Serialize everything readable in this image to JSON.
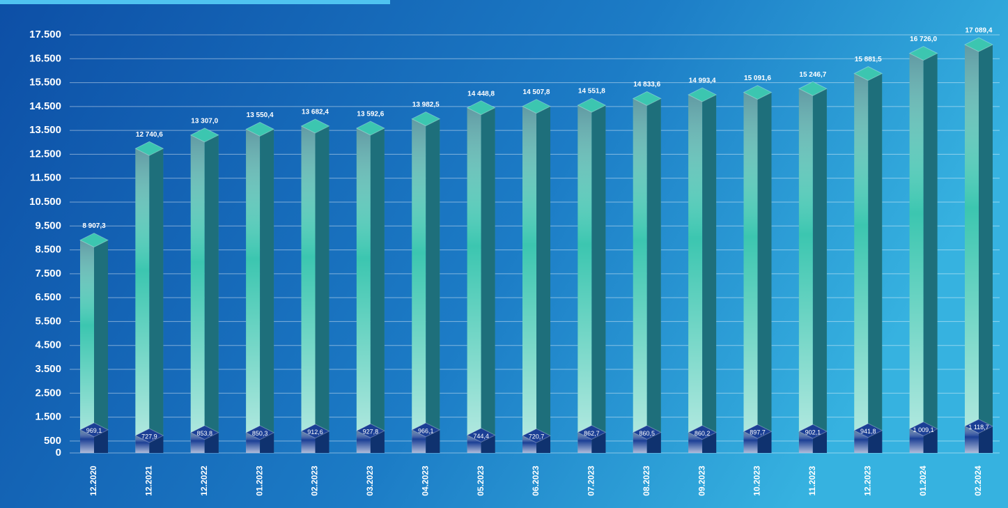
{
  "chart_data": {
    "type": "bar",
    "categories": [
      "12.2020",
      "12.2021",
      "12.2022",
      "01.2023",
      "02.2023",
      "03.2023",
      "04.2023",
      "05.2023",
      "06.2023",
      "07.2023",
      "08.2023",
      "09.2023",
      "10.2023",
      "11.2023",
      "12.2023",
      "01.2024",
      "02.2024"
    ],
    "series": [
      {
        "color": "#3cc6b0",
        "values": [
          8907.3,
          12740.6,
          13307.0,
          13550.4,
          13682.4,
          13592.6,
          13982.5,
          14448.8,
          14507.8,
          14551.8,
          14833.6,
          14993.4,
          15091.6,
          15246.7,
          15881.5,
          16726.0,
          17089.4
        ],
        "value_labels": [
          "8 907,3",
          "12 740,6",
          "13 307,0",
          "13 550,4",
          "13 682,4",
          "13 592,6",
          "13 982,5",
          "14 448,8",
          "14 507,8",
          "14 551,8",
          "14 833,6",
          "14 993,4",
          "15 091,6",
          "15 246,7",
          "15 881,5",
          "16 726,0",
          "17 089,4"
        ]
      },
      {
        "color": "#1b3f95",
        "values": [
          969.1,
          727.9,
          853.8,
          850.3,
          912.6,
          927.8,
          966.1,
          744.4,
          720.7,
          862.7,
          860.5,
          860.2,
          897.7,
          902.1,
          941.8,
          1009.1,
          1118.7
        ],
        "value_labels": [
          "969,1",
          "727,9",
          "853,8",
          "850,3",
          "912,6",
          "927,8",
          "966,1",
          "744,4",
          "720,7",
          "862,7",
          "860,5",
          "860,2",
          "897,7",
          "902,1",
          "941,8",
          "1 009,1",
          "1 118,7"
        ]
      }
    ],
    "ylim": [
      0,
      17500
    ],
    "yticks": [
      0,
      500,
      {
        "value": 1500,
        "label": "1.500"
      },
      {
        "value": 2500,
        "label": "2.500"
      },
      {
        "value": 3500,
        "label": "3.500"
      },
      {
        "value": 4500,
        "label": "4.500"
      },
      {
        "value": 5500,
        "label": "5.500"
      },
      {
        "value": 6500,
        "label": "6.500"
      },
      {
        "value": 7500,
        "label": "7.500"
      },
      {
        "value": 8500,
        "label": "8.500"
      },
      {
        "value": 9500,
        "label": "9.500"
      },
      {
        "value": 10500,
        "label": "10.500"
      },
      {
        "value": 11500,
        "label": "11.500"
      },
      {
        "value": 12500,
        "label": "12.500"
      },
      {
        "value": 13500,
        "label": "13.500"
      },
      {
        "value": 14500,
        "label": "14.500"
      },
      {
        "value": 15500,
        "label": "15.500"
      },
      {
        "value": 16500,
        "label": "16.500"
      },
      {
        "value": 17500,
        "label": "17.500"
      }
    ],
    "grid": true
  }
}
